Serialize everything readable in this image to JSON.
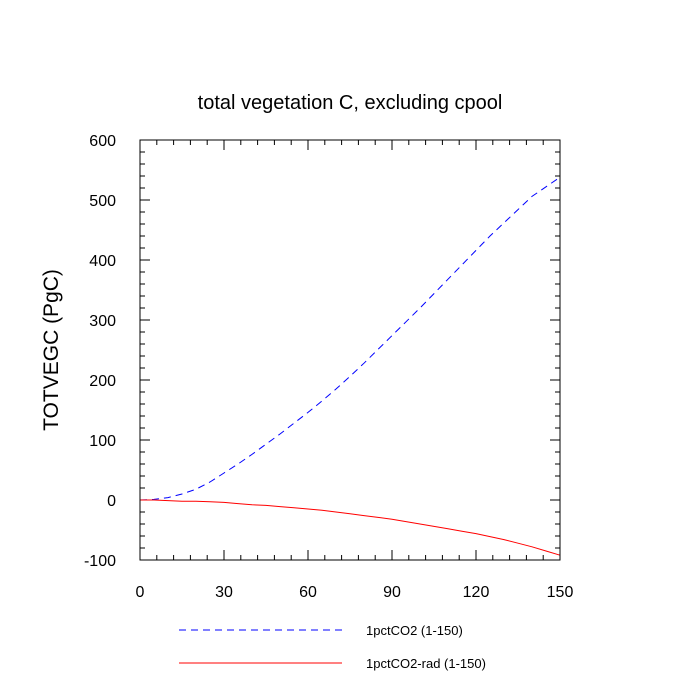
{
  "chart_data": {
    "type": "line",
    "title": "total vegetation C, excluding cpool",
    "xlabel": "",
    "ylabel": "TOTVEGC  (PgC)",
    "xlim": [
      0,
      150
    ],
    "ylim": [
      -100,
      600
    ],
    "x_ticks": [
      0,
      30,
      60,
      90,
      120,
      150
    ],
    "y_ticks": [
      -100,
      0,
      100,
      200,
      300,
      400,
      500,
      600
    ],
    "grid": false,
    "legend_position": "bottom",
    "series": [
      {
        "name": "1pctCO2 (1-150)",
        "color": "#0000ff",
        "dash": "dashed",
        "x": [
          0,
          5,
          10,
          15,
          20,
          25,
          30,
          35,
          40,
          45,
          50,
          55,
          60,
          65,
          70,
          75,
          80,
          85,
          90,
          95,
          100,
          105,
          110,
          115,
          120,
          125,
          130,
          135,
          140,
          145,
          150
        ],
        "y": [
          0,
          1,
          4,
          10,
          18,
          30,
          45,
          60,
          76,
          93,
          110,
          128,
          146,
          165,
          185,
          206,
          228,
          251,
          274,
          297,
          320,
          344,
          368,
          392,
          416,
          440,
          462,
          484,
          506,
          522,
          538
        ]
      },
      {
        "name": "1pctCO2-rad (1-150)",
        "color": "#ff0000",
        "dash": "solid",
        "x": [
          0,
          5,
          10,
          15,
          20,
          25,
          30,
          35,
          40,
          45,
          50,
          55,
          60,
          65,
          70,
          75,
          80,
          85,
          90,
          95,
          100,
          105,
          110,
          115,
          120,
          125,
          130,
          135,
          140,
          145,
          150
        ],
        "y": [
          0,
          0,
          -1,
          -2,
          -2,
          -3,
          -4,
          -6,
          -8,
          -9,
          -11,
          -13,
          -15,
          -17,
          -20,
          -23,
          -26,
          -29,
          -32,
          -36,
          -40,
          -44,
          -48,
          -52,
          -56,
          -61,
          -66,
          -72,
          -78,
          -85,
          -92
        ]
      }
    ]
  }
}
